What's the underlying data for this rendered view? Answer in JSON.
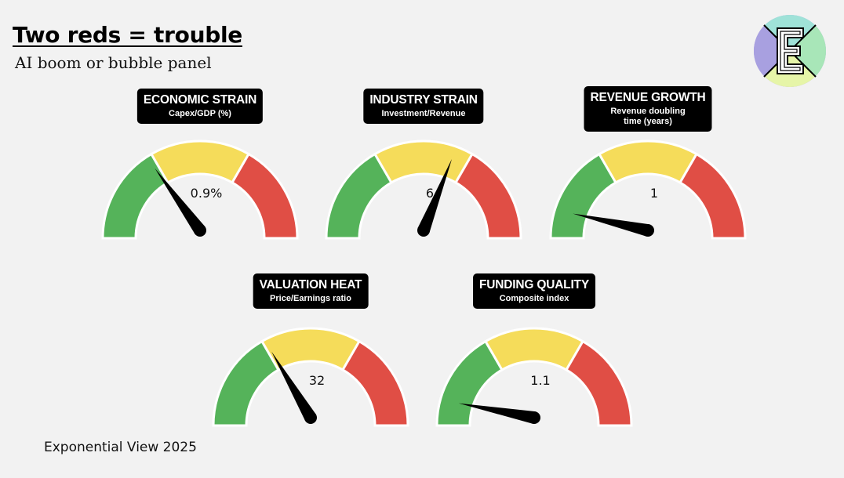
{
  "header": {
    "title": "Two reds = trouble",
    "subtitle": "AI boom or bubble panel"
  },
  "footer": {
    "credit": "Exponential View 2025"
  },
  "logo": {
    "letter": "E",
    "colors": [
      "#a8a0e0",
      "#9fe2d8",
      "#a8e6b8",
      "#e6f5a8"
    ]
  },
  "colors": {
    "green": "#55b35a",
    "yellow": "#f5dc5a",
    "red": "#e04e45",
    "needle": "#000000"
  },
  "gauges": [
    {
      "title": "ECONOMIC STRAIN",
      "subtitle_lines": [
        "Capex/GDP (%)"
      ],
      "reading": "0.9%",
      "needle_fraction": 0.3
    },
    {
      "title": "INDUSTRY STRAIN",
      "subtitle_lines": [
        "Investment/Revenue"
      ],
      "reading": "6",
      "needle_fraction": 0.62
    },
    {
      "title": "REVENUE GROWTH",
      "subtitle_lines": [
        "Revenue doubling",
        "time (years)"
      ],
      "reading": "1",
      "needle_fraction": 0.07
    },
    {
      "title": "VALUATION HEAT",
      "subtitle_lines": [
        "Price/Earnings ratio"
      ],
      "reading": "32",
      "needle_fraction": 0.33
    },
    {
      "title": "FUNDING QUALITY",
      "subtitle_lines": [
        "Composite index"
      ],
      "reading": "1.1",
      "needle_fraction": 0.06
    }
  ]
}
